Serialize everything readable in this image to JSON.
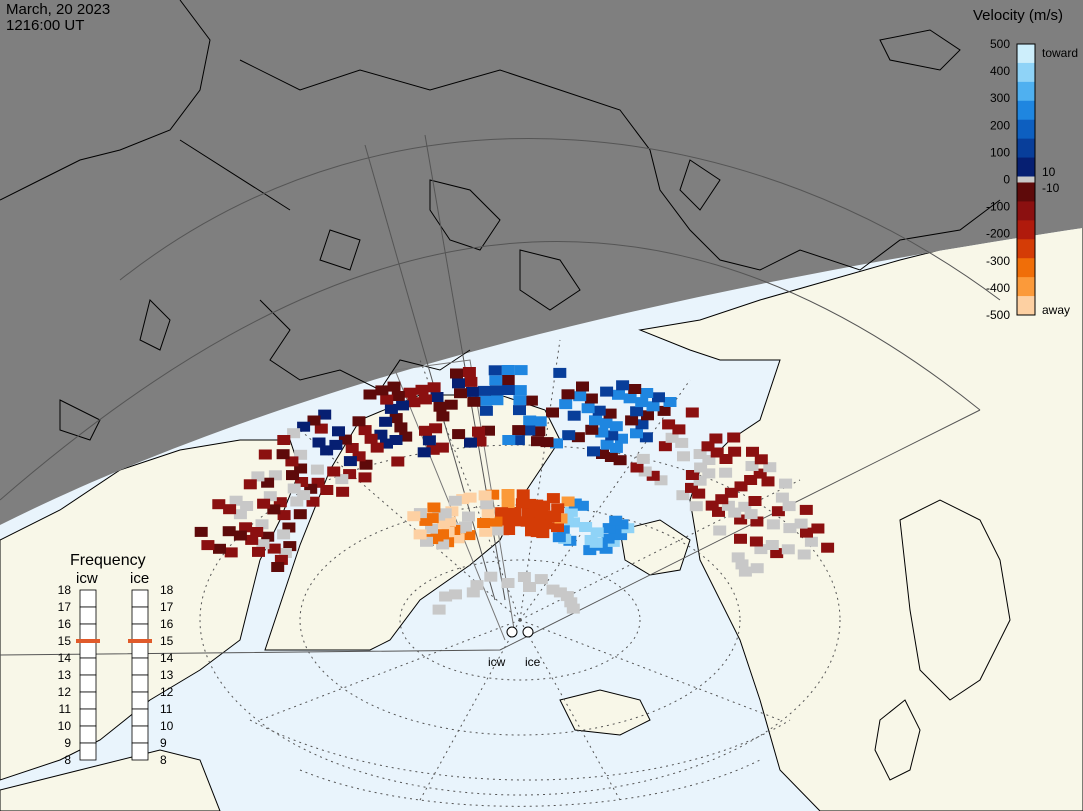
{
  "header": {
    "date": "March, 20 2023",
    "time": "1216:00 UT"
  },
  "velocity_scale": {
    "title": "Velocity (m/s)",
    "ticks": [
      "500",
      "400",
      "300",
      "200",
      "100",
      "0",
      "-100",
      "-200",
      "-300",
      "-400",
      "-500"
    ],
    "zero_band_labels": [
      "10",
      "-10"
    ],
    "toward_label": "toward",
    "away_label": "away",
    "colors": {
      "toward": [
        "#cdeefb",
        "#8fd3f7",
        "#4fb0f0",
        "#1f86e0",
        "#0d5fc0",
        "#083e9a",
        "#061f72"
      ],
      "zero": "#c8c8c8",
      "away": [
        "#5e0a0a",
        "#8b1010",
        "#b01a0c",
        "#d43c06",
        "#f06e08",
        "#fb9a3a",
        "#fdd0a2"
      ]
    }
  },
  "frequency_panel": {
    "title": "Frequency",
    "radars": [
      {
        "code": "icw",
        "selected_mhz": 15
      },
      {
        "code": "ice",
        "selected_mhz": 15
      }
    ],
    "ticks": [
      "18",
      "17",
      "16",
      "15",
      "14",
      "13",
      "12",
      "11",
      "10",
      "9",
      "8"
    ],
    "indicator_color": "#e05a2a"
  },
  "radar_sites": [
    "icw",
    "ice"
  ],
  "map_colors": {
    "night": "#7f7f7f",
    "ocean": "#e9f4fc",
    "land": "#f8f7e8",
    "ground_scatter": "#c8c8c8",
    "coastline": "#000000"
  }
}
